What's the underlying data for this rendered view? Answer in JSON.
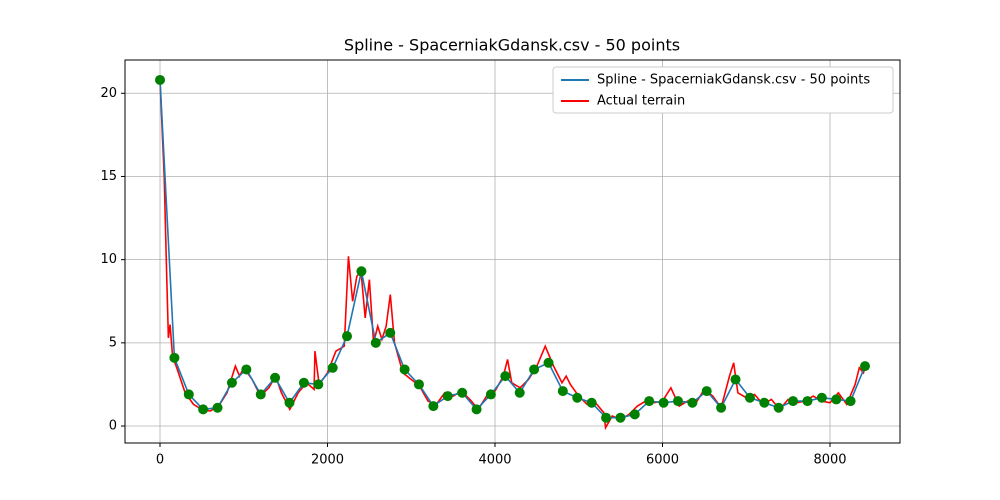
{
  "chart_data": {
    "type": "line",
    "title": "Spline - SpacerniakGdansk.csv - 50 points",
    "xlim": [
      -418,
      8836
    ],
    "ylim": [
      -1.02,
      22.0
    ],
    "xticks": [
      0,
      2000,
      4000,
      6000,
      8000
    ],
    "yticks": [
      0,
      5,
      10,
      15,
      20
    ],
    "grid": true,
    "legend": "upper right",
    "series": [
      {
        "name": "Spline - SpacerniakGdansk.csv - 50 points",
        "color": "#1f77b4",
        "markers": true,
        "marker_color": "green",
        "x": [
          0,
          172,
          344,
          515,
          687,
          859,
          1031,
          1203,
          1374,
          1546,
          1718,
          1890,
          2062,
          2233,
          2405,
          2577,
          2749,
          2921,
          3092,
          3264,
          3436,
          3608,
          3780,
          3951,
          4123,
          4295,
          4467,
          4639,
          4810,
          4982,
          5154,
          5326,
          5498,
          5669,
          5841,
          6013,
          6185,
          6357,
          6528,
          6700,
          6872,
          7044,
          7216,
          7387,
          7559,
          7731,
          7903,
          8075,
          8246,
          8418
        ],
        "values": [
          20.8,
          4.1,
          1.9,
          1.0,
          1.1,
          2.6,
          3.4,
          1.9,
          2.9,
          1.4,
          2.6,
          2.5,
          3.5,
          5.4,
          9.3,
          5.0,
          5.6,
          3.4,
          2.5,
          1.2,
          1.8,
          2.0,
          1.0,
          1.9,
          3.0,
          2.0,
          3.4,
          3.8,
          2.1,
          1.7,
          1.4,
          0.5,
          0.5,
          0.7,
          1.5,
          1.4,
          1.5,
          1.4,
          2.1,
          1.1,
          2.8,
          1.7,
          1.4,
          1.1,
          1.5,
          1.5,
          1.7,
          1.6,
          1.5,
          3.6
        ]
      },
      {
        "name": "Actual terrain",
        "color": "#ff0000",
        "x": [
          0,
          50,
          80,
          100,
          120,
          150,
          200,
          300,
          400,
          500,
          600,
          700,
          800,
          900,
          950,
          1000,
          1100,
          1200,
          1300,
          1380,
          1450,
          1550,
          1650,
          1750,
          1840,
          1850,
          1900,
          2000,
          2100,
          2200,
          2250,
          2300,
          2350,
          2400,
          2450,
          2500,
          2550,
          2600,
          2650,
          2700,
          2750,
          2800,
          2900,
          3000,
          3100,
          3200,
          3300,
          3400,
          3500,
          3600,
          3700,
          3800,
          3900,
          4000,
          4100,
          4150,
          4200,
          4300,
          4400,
          4500,
          4600,
          4700,
          4800,
          4850,
          4900,
          5000,
          5100,
          5200,
          5300,
          5320,
          5400,
          5500,
          5600,
          5700,
          5800,
          5900,
          6000,
          6100,
          6200,
          6300,
          6400,
          6500,
          6600,
          6700,
          6800,
          6850,
          6900,
          7000,
          7100,
          7200,
          7300,
          7400,
          7500,
          7600,
          7700,
          7800,
          7900,
          8000,
          8100,
          8200,
          8300,
          8350,
          8400,
          8420
        ],
        "values": [
          20.8,
          15,
          9,
          5.3,
          6.1,
          4.2,
          3.5,
          2.0,
          1.3,
          1.0,
          0.9,
          1.2,
          2.0,
          3.6,
          3.0,
          3.5,
          2.8,
          1.8,
          2.3,
          3.0,
          2.0,
          1.0,
          2.0,
          2.6,
          2.2,
          4.5,
          2.5,
          3.2,
          4.5,
          4.8,
          10.2,
          7.5,
          9.0,
          9.3,
          6.5,
          8.8,
          5.0,
          6.0,
          5.2,
          6.0,
          7.9,
          5.0,
          3.2,
          2.8,
          2.4,
          1.5,
          1.3,
          2.0,
          1.8,
          2.1,
          1.6,
          1.0,
          1.8,
          2.1,
          3.0,
          4.0,
          2.6,
          2.3,
          2.8,
          3.6,
          4.8,
          3.6,
          2.6,
          3.0,
          2.5,
          1.8,
          1.3,
          1.4,
          0.8,
          -0.1,
          0.6,
          0.4,
          0.7,
          1.2,
          1.5,
          1.4,
          1.5,
          2.3,
          1.2,
          1.5,
          1.4,
          2.2,
          1.8,
          1.1,
          3.0,
          3.8,
          2.0,
          1.7,
          1.9,
          1.3,
          1.6,
          1.0,
          1.6,
          1.4,
          1.5,
          1.8,
          1.5,
          1.4,
          2.0,
          1.3,
          2.5,
          3.5,
          3.2,
          3.6
        ]
      }
    ]
  }
}
